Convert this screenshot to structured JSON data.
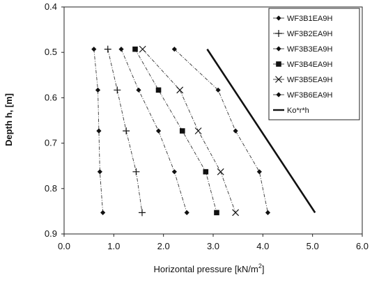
{
  "chart_data": {
    "type": "line",
    "title": "",
    "xlabel": "Horizontal pressure [kN/m",
    "xlabel_sup": "2",
    "xlabel_end": "]",
    "ylabel": "Depth h, [m]",
    "xlim": [
      0,
      6
    ],
    "ylim": [
      0.4,
      0.9
    ],
    "y_inverted": true,
    "x_ticks": [
      "0.0",
      "1.0",
      "2.0",
      "3.0",
      "4.0",
      "5.0",
      "6.0"
    ],
    "y_ticks": [
      "0.4",
      "0.5",
      "0.6",
      "0.7",
      "0.8",
      "0.9"
    ],
    "grid": false,
    "legend_position": "top-right",
    "series": [
      {
        "name": "WF3B1EA9H",
        "marker": "diamond",
        "line": "dashdot",
        "x": [
          0.6,
          0.68,
          0.7,
          0.72,
          0.78
        ],
        "y": [
          0.493,
          0.583,
          0.673,
          0.763,
          0.853
        ]
      },
      {
        "name": "WF3B2EA9H",
        "marker": "plus",
        "line": "dashdot",
        "x": [
          0.88,
          1.07,
          1.25,
          1.45,
          1.57
        ],
        "y": [
          0.493,
          0.583,
          0.673,
          0.763,
          0.853
        ]
      },
      {
        "name": "WF3B3EA9H",
        "marker": "diamond",
        "line": "dashdot",
        "x": [
          1.15,
          1.5,
          1.9,
          2.22,
          2.47
        ],
        "y": [
          0.493,
          0.583,
          0.673,
          0.763,
          0.853
        ]
      },
      {
        "name": "WF3B4EA9H",
        "marker": "square",
        "line": "dashdot",
        "x": [
          1.43,
          1.9,
          2.38,
          2.85,
          3.07
        ],
        "y": [
          0.493,
          0.583,
          0.673,
          0.763,
          0.853
        ]
      },
      {
        "name": "WF3B5EA9H",
        "marker": "x",
        "line": "dashdot",
        "x": [
          1.58,
          2.33,
          2.7,
          3.15,
          3.45
        ],
        "y": [
          0.493,
          0.583,
          0.673,
          0.763,
          0.853
        ]
      },
      {
        "name": "WF3B6EA9H",
        "marker": "diamond",
        "line": "dashdot",
        "x": [
          2.22,
          3.1,
          3.45,
          3.93,
          4.1
        ],
        "y": [
          0.493,
          0.583,
          0.673,
          0.763,
          0.853
        ]
      },
      {
        "name": "Ko*r*h",
        "marker": "none",
        "line": "solid-thick",
        "x": [
          2.88,
          5.05
        ],
        "y": [
          0.493,
          0.853
        ]
      }
    ]
  }
}
